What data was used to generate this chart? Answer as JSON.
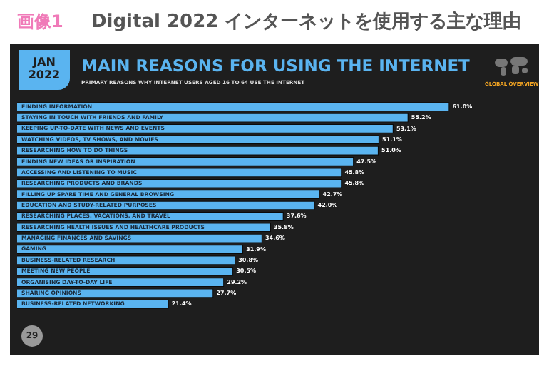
{
  "chart_data": {
    "type": "bar",
    "orientation": "horizontal",
    "title": "Digital 2022 インターネットを使用する主な理由",
    "subtitle": "MAIN REASONS FOR USING THE INTERNET",
    "annotations": [
      "画像1",
      "JAN 2022",
      "PRIMARY REASONS WHY INTERNET USERS AGED 16 TO 64 USE THE INTERNET",
      "GLOBAL OVERVIEW",
      "29"
    ],
    "categories": [
      "FINDING INFORMATION",
      "STAYING IN TOUCH WITH FRIENDS AND FAMILY",
      "KEEPING UP-TO-DATE WITH NEWS AND EVENTS",
      "WATCHING VIDEOS, TV SHOWS, AND MOVIES",
      "RESEARCHING HOW TO DO THINGS",
      "FINDING NEW IDEAS OR INSPIRATION",
      "ACCESSING AND LISTENING TO MUSIC",
      "RESEARCHING PRODUCTS AND BRANDS",
      "FILLING UP SPARE TIME AND GENERAL BROWSING",
      "EDUCATION AND STUDY-RELATED PURPOSES",
      "RESEARCHING PLACES, VACATIONS, AND TRAVEL",
      "RESEARCHING HEALTH ISSUES AND HEALTHCARE PRODUCTS",
      "MANAGING FINANCES AND SAVINGS",
      "GAMING",
      "BUSINESS-RELATED RESEARCH",
      "MEETING NEW PEOPLE",
      "ORGANISING DAY-TO-DAY LIFE",
      "SHARING OPINIONS",
      "BUSINESS-RELATED NETWORKING"
    ],
    "values": [
      61.0,
      55.2,
      53.1,
      51.1,
      51.0,
      47.5,
      45.8,
      45.8,
      42.7,
      42.0,
      37.6,
      35.8,
      34.6,
      31.9,
      30.8,
      30.5,
      29.2,
      27.7,
      21.4
    ],
    "value_labels": [
      "61.0%",
      "55.2%",
      "53.1%",
      "51.1%",
      "51.0%",
      "47.5%",
      "45.8%",
      "45.8%",
      "42.7%",
      "42.0%",
      "37.6%",
      "35.8%",
      "34.6%",
      "31.9%",
      "30.8%",
      "30.5%",
      "29.2%",
      "27.7%",
      "21.4%"
    ],
    "color": "#5ab4f0"
  }
}
